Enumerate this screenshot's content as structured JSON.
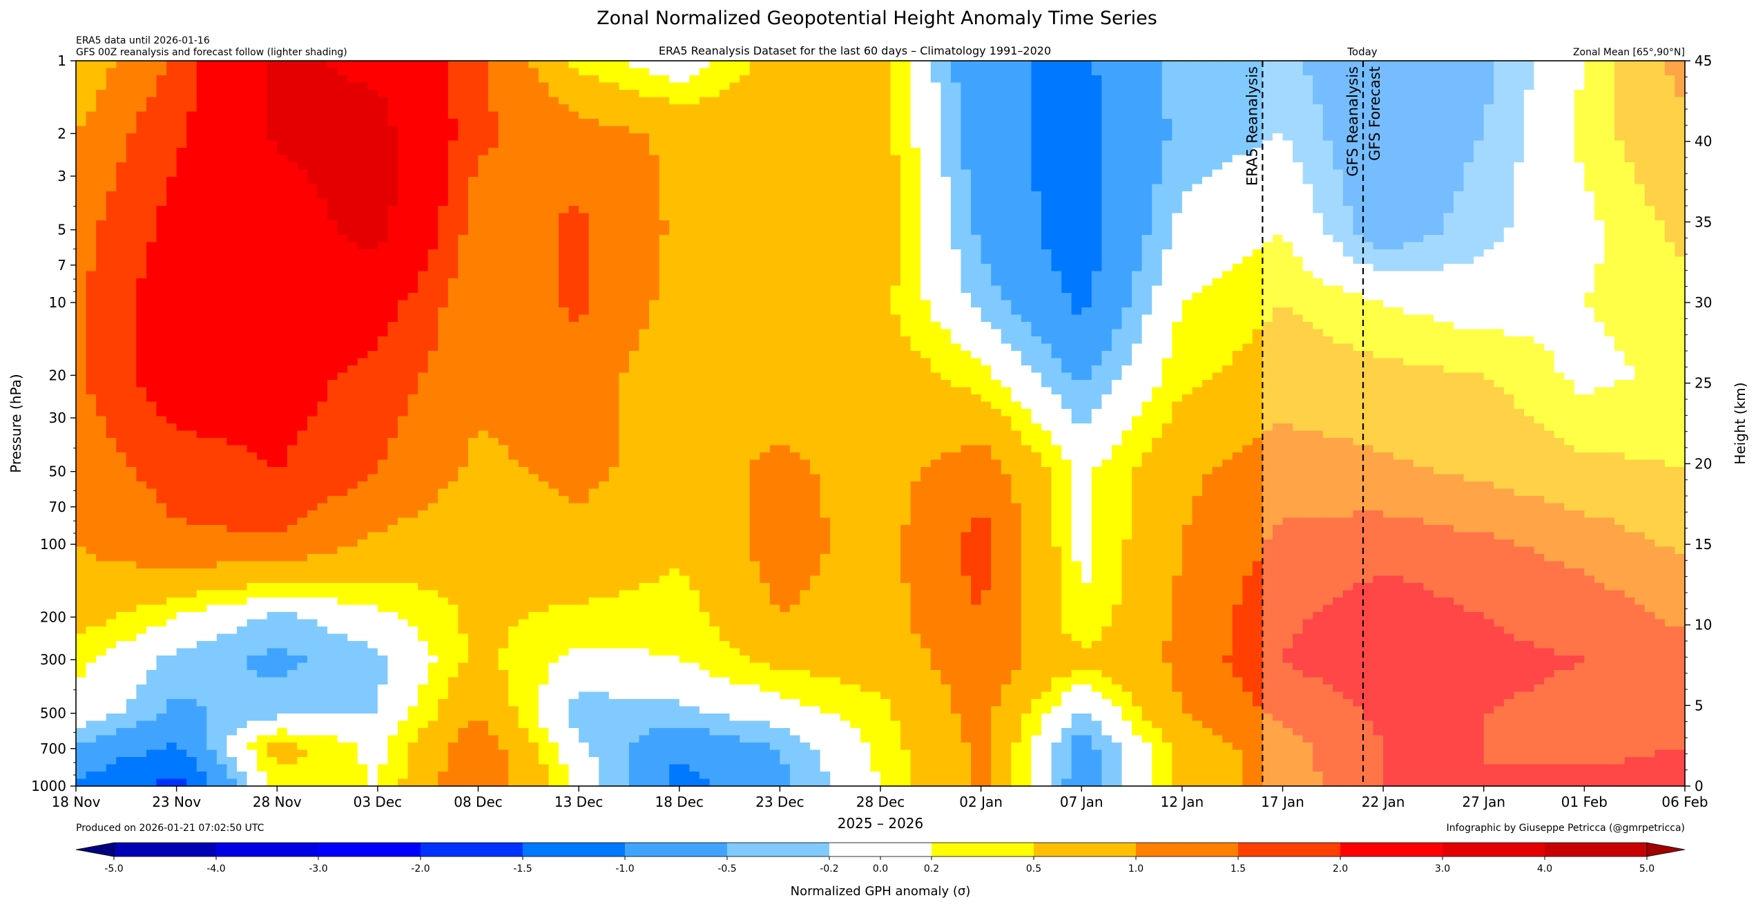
{
  "chart_data": {
    "type": "heatmap",
    "title": "Zonal Normalized Geopotential Height Anomaly Time Series",
    "subtitle": "ERA5 Reanalysis Dataset for the last 60 days – Climatology 1991–2020",
    "top_left_notes": [
      "ERA5 data until 2026-01-16",
      "GFS 00Z reanalysis and forecast follow (lighter shading)"
    ],
    "today_label": "Today",
    "region_label": "Zonal Mean [65°,90°N]",
    "xlabel": "2025 – 2026",
    "ylabel": "Pressure (hPa)",
    "ylabel_right": "Height (km)",
    "x_tick_labels": [
      "18 Nov",
      "23 Nov",
      "28 Nov",
      "03 Dec",
      "08 Dec",
      "13 Dec",
      "18 Dec",
      "23 Dec",
      "28 Dec",
      "02 Jan",
      "07 Jan",
      "12 Jan",
      "17 Jan",
      "22 Jan",
      "27 Jan",
      "01 Feb",
      "06 Feb"
    ],
    "x_tick_days": [
      0,
      5,
      10,
      15,
      20,
      25,
      30,
      35,
      40,
      45,
      50,
      55,
      60,
      65,
      70,
      75,
      80
    ],
    "x_range_days": [
      0,
      80
    ],
    "pressure_ticks": [
      1,
      2,
      3,
      5,
      7,
      10,
      20,
      30,
      50,
      70,
      100,
      200,
      300,
      500,
      700,
      1000
    ],
    "pressure_range": [
      1,
      1000
    ],
    "height_ticks_km": [
      0,
      5,
      10,
      15,
      20,
      25,
      30,
      35,
      40,
      45
    ],
    "height_range_km": [
      0,
      45
    ],
    "markers": [
      {
        "label": "ERA5 Reanalysis",
        "day": 59
      },
      {
        "label": "GFS Reanalysis",
        "day": 64
      },
      {
        "label": "GFS Forecast",
        "day": 64
      }
    ],
    "forecast_start_day": 59,
    "colorbar_label": "Normalized GPH anomaly (σ)",
    "colorbar_levels": [
      -5.0,
      -4.0,
      -3.0,
      -2.0,
      -1.5,
      -1.0,
      -0.5,
      -0.2,
      0.2,
      0.5,
      1.0,
      1.5,
      2.0,
      3.0,
      4.0,
      5.0
    ],
    "colorbar_tick_labels": [
      "-5.0",
      "-4.0",
      "-3.0",
      "-2.0",
      "-1.5",
      "-1.0",
      "-0.5",
      "-0.2",
      "0.0",
      "0.2",
      "0.5",
      "1.0",
      "1.5",
      "2.0",
      "3.0",
      "4.0",
      "5.0"
    ],
    "colorbar_colors": [
      "#0000b4",
      "#0000e6",
      "#0000ff",
      "#0033ff",
      "#0078ff",
      "#40a4ff",
      "#80caff",
      "#ffffff",
      "#ffff00",
      "#ffbf00",
      "#ff8000",
      "#ff4000",
      "#ff0000",
      "#e40000",
      "#c80000"
    ],
    "underflow_color": "#000080",
    "overflow_color": "#a00000",
    "anomaly_grid": {
      "days": [
        0,
        5,
        10,
        15,
        20,
        25,
        30,
        35,
        40,
        45,
        50,
        55,
        60,
        65,
        70,
        75,
        80
      ],
      "pressures": [
        1,
        2,
        5,
        10,
        20,
        50,
        100,
        200,
        300,
        500,
        700,
        1000
      ],
      "values": [
        [
          0.6,
          1.6,
          3.2,
          2.8,
          1.6,
          0.4,
          -0.1,
          0.7,
          0.6,
          -0.9,
          -1.1,
          -0.3,
          -0.4,
          -0.9,
          -0.6,
          0.2,
          1.2
        ],
        [
          1.0,
          1.9,
          3.1,
          3.3,
          1.6,
          1.2,
          0.9,
          0.8,
          0.7,
          -0.8,
          -1.2,
          -0.4,
          -0.2,
          -0.9,
          -0.5,
          0.3,
          0.9
        ],
        [
          1.3,
          2.2,
          2.6,
          3.3,
          1.2,
          1.6,
          0.9,
          0.7,
          0.8,
          -0.6,
          -1.3,
          -0.1,
          0.2,
          -0.8,
          -0.3,
          0.1,
          0.6
        ],
        [
          1.4,
          2.4,
          2.5,
          2.3,
          1.1,
          1.6,
          0.8,
          0.9,
          0.6,
          -0.3,
          -1.1,
          0.2,
          0.5,
          0.2,
          0.0,
          0.2,
          0.4
        ],
        [
          1.4,
          2.4,
          2.3,
          1.8,
          1.1,
          1.3,
          0.6,
          0.8,
          0.8,
          0.3,
          -0.6,
          0.4,
          0.7,
          0.6,
          0.5,
          0.1,
          0.3
        ],
        [
          1.2,
          1.7,
          2.0,
          1.5,
          0.9,
          1.1,
          0.8,
          1.1,
          0.8,
          1.3,
          0.1,
          0.9,
          1.3,
          1.1,
          0.9,
          0.6,
          0.5
        ],
        [
          1.0,
          1.4,
          1.4,
          0.9,
          0.6,
          0.9,
          0.6,
          1.2,
          0.8,
          1.7,
          0.1,
          1.0,
          1.6,
          1.8,
          1.6,
          1.3,
          0.9
        ],
        [
          0.7,
          0.2,
          -0.3,
          0.1,
          0.6,
          0.4,
          0.3,
          1.0,
          0.8,
          1.5,
          0.2,
          1.1,
          1.9,
          2.3,
          2.0,
          1.8,
          1.4
        ],
        [
          0.3,
          -0.3,
          -0.6,
          -0.3,
          0.6,
          0.1,
          0.2,
          0.6,
          0.7,
          1.3,
          0.6,
          1.1,
          2.0,
          2.4,
          2.1,
          2.0,
          1.7
        ],
        [
          0.1,
          -0.6,
          -0.3,
          -0.2,
          1.0,
          -0.4,
          -0.3,
          0.0,
          0.4,
          1.2,
          -0.3,
          1.0,
          1.6,
          2.1,
          2.0,
          1.9,
          1.8
        ],
        [
          -0.6,
          -1.1,
          0.7,
          0.1,
          1.4,
          -0.1,
          -0.9,
          -0.5,
          0.3,
          1.1,
          -0.7,
          0.6,
          1.3,
          2.0,
          2.0,
          1.9,
          2.0
        ],
        [
          -1.1,
          -1.7,
          0.3,
          0.2,
          1.5,
          0.1,
          -1.2,
          -0.6,
          0.2,
          1.1,
          -0.8,
          0.7,
          1.2,
          2.0,
          2.0,
          2.1,
          2.2
        ]
      ]
    },
    "produced_on": "Produced on 2026-01-21 07:02:50 UTC",
    "credit": "Infographic by Giuseppe Petricca (@gmrpetricca)"
  }
}
